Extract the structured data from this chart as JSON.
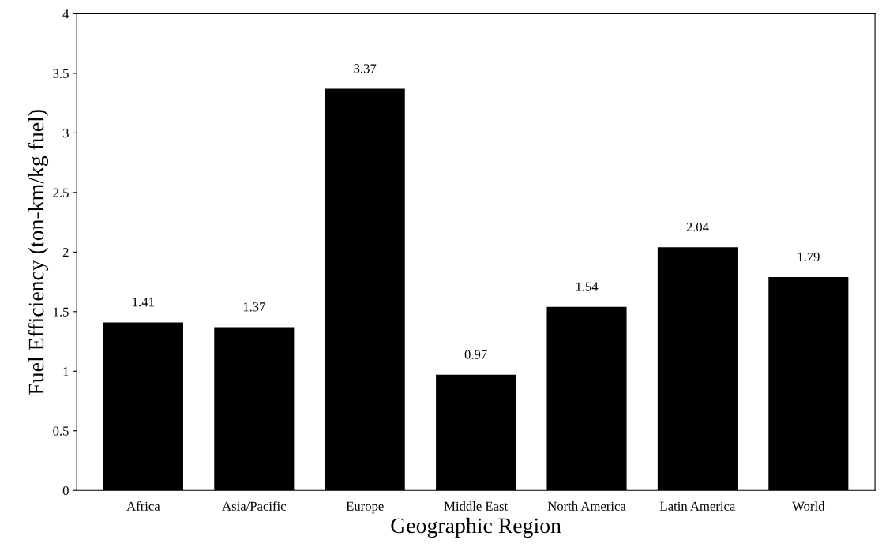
{
  "chart_data": {
    "type": "bar",
    "xlabel": "Geographic Region",
    "ylabel": "Fuel Efficiency (ton-km/kg fuel)",
    "categories": [
      "Africa",
      "Asia/Pacific",
      "Europe",
      "Middle East",
      "North America",
      "Latin America",
      "World"
    ],
    "values": [
      1.41,
      1.37,
      3.37,
      0.97,
      1.54,
      2.04,
      1.79
    ],
    "color": "#000000",
    "data_labels": true,
    "ylim": [
      0,
      4
    ],
    "yticks": [
      0,
      {
        "value": 0.5,
        "label": "0.5"
      },
      1,
      {
        "value": 1.5,
        "label": "1.5"
      },
      2,
      {
        "value": 2.5,
        "label": "2.5"
      },
      3,
      {
        "value": 3.5,
        "label": "3.5"
      },
      4
    ],
    "grid": false,
    "legend": false
  }
}
